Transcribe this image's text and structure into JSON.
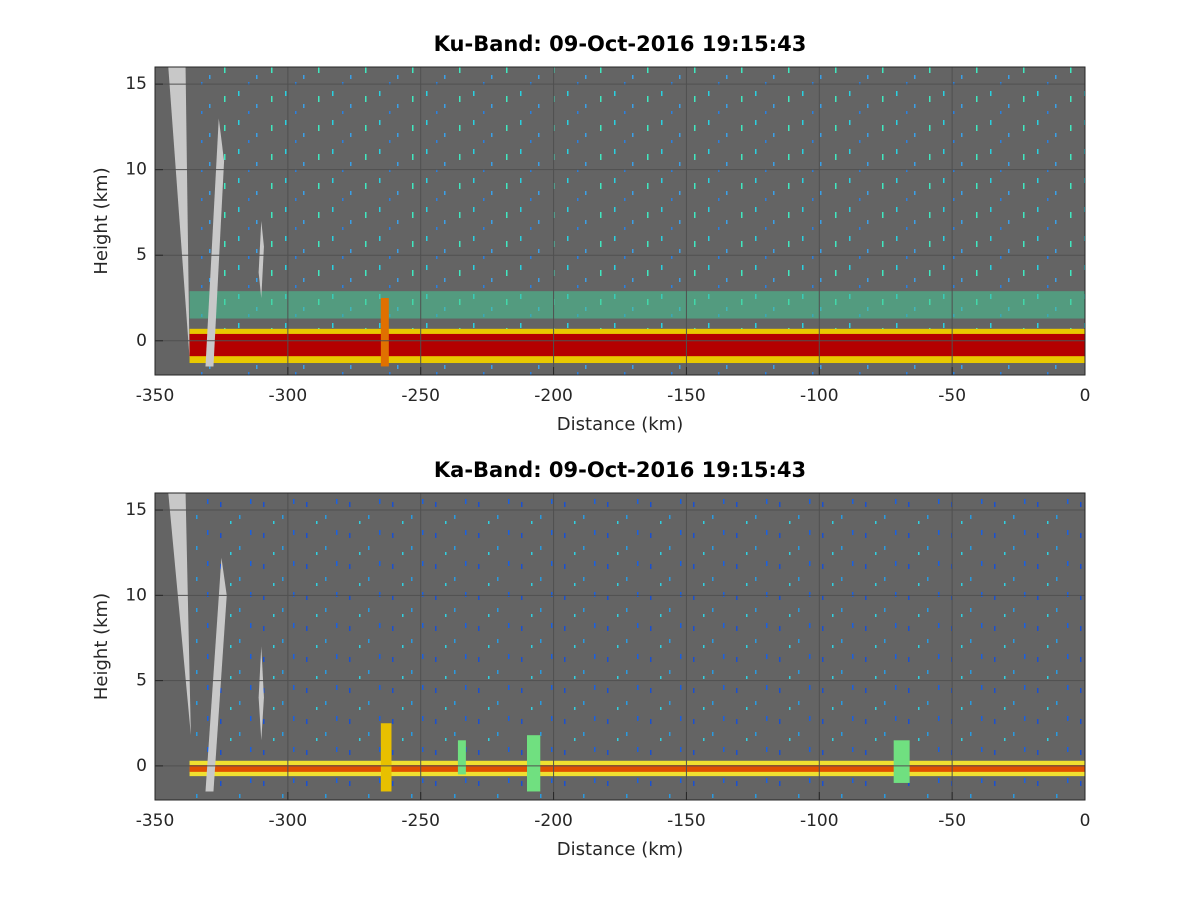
{
  "chart_data": [
    {
      "type": "radar",
      "title": "Ku-Band: 09-Oct-2016 19:15:43",
      "xlabel": "Distance (km)",
      "ylabel": "Height (km)",
      "xlim": [
        -350,
        0
      ],
      "ylim": [
        -2,
        16
      ],
      "xticks": [
        -350,
        -300,
        -250,
        -200,
        -150,
        -100,
        -50,
        0
      ],
      "yticks": [
        0,
        5,
        10,
        15
      ],
      "grid": true,
      "background": "#646464",
      "rects": [
        {
          "x": [
            -337,
            0
          ],
          "y": [
            1.3,
            2.9
          ],
          "color": "#46c896"
        },
        {
          "x": [
            -337,
            0
          ],
          "y": [
            -1.3,
            0.7
          ],
          "color": "#e8c800"
        },
        {
          "x": [
            -337,
            0
          ],
          "y": [
            -0.9,
            0.4
          ],
          "color": "#b40000"
        },
        {
          "x": [
            -265,
            -262
          ],
          "y": [
            -1.5,
            2.5
          ],
          "color": "#e07000"
        }
      ],
      "polygons": [
        {
          "x": [
            -345,
            -338.5,
            -337
          ],
          "y": [
            16,
            16,
            -1
          ],
          "color": "#c8c8c8"
        },
        {
          "x": [
            -326,
            -324,
            -328,
            -331
          ],
          "y": [
            13,
            10.5,
            -1.5,
            -1.5
          ],
          "color": "#c8c8c8"
        },
        {
          "x": [
            -310,
            -309,
            -310,
            -311
          ],
          "y": [
            7,
            5.5,
            2.5,
            4
          ],
          "color": "#c8c8c8"
        }
      ]
    },
    {
      "type": "radar",
      "title": "Ka-Band: 09-Oct-2016 19:15:43",
      "xlabel": "Distance (km)",
      "ylabel": "Height (km)",
      "xlim": [
        -350,
        0
      ],
      "ylim": [
        -2,
        16
      ],
      "xticks": [
        -350,
        -300,
        -250,
        -200,
        -150,
        -100,
        -50,
        0
      ],
      "yticks": [
        0,
        5,
        10,
        15
      ],
      "grid": true,
      "background": "#646464",
      "rects": [
        {
          "x": [
            -337,
            0
          ],
          "y": [
            -0.6,
            0.3
          ],
          "color": "#f0e030"
        },
        {
          "x": [
            -337,
            0
          ],
          "y": [
            -0.35,
            0.05
          ],
          "color": "#e05000"
        },
        {
          "x": [
            -265,
            -261
          ],
          "y": [
            -1.5,
            2.5
          ],
          "color": "#e8c000"
        },
        {
          "x": [
            -236,
            -233
          ],
          "y": [
            -0.5,
            1.5
          ],
          "color": "#70e080"
        },
        {
          "x": [
            -210,
            -205
          ],
          "y": [
            -1.5,
            1.8
          ],
          "color": "#70e080"
        },
        {
          "x": [
            -72,
            -66
          ],
          "y": [
            -1,
            1.5
          ],
          "color": "#70e080"
        }
      ],
      "polygons": [
        {
          "x": [
            -345,
            -338.5,
            -336.5
          ],
          "y": [
            16,
            16,
            1.8
          ],
          "color": "#c8c8c8"
        },
        {
          "x": [
            -325,
            -323,
            -328,
            -331
          ],
          "y": [
            12.2,
            10,
            -1.5,
            -1.5
          ],
          "color": "#c8c8c8"
        },
        {
          "x": [
            -310,
            -309,
            -310,
            -311
          ],
          "y": [
            7,
            4,
            1.5,
            4
          ],
          "color": "#c8c8c8"
        }
      ]
    }
  ]
}
